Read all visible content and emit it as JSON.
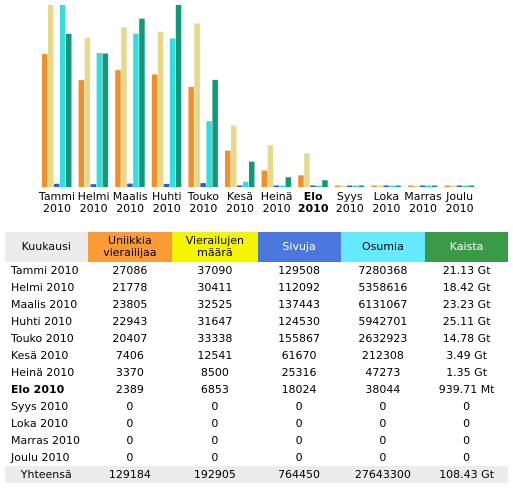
{
  "chart_data": {
    "type": "bar",
    "categories": [
      "Tammi 2010",
      "Helmi 2010",
      "Maalis 2010",
      "Huhti 2010",
      "Touko 2010",
      "Kesä 2010",
      "Heinä 2010",
      "Elo 2010",
      "Syys 2010",
      "Loka 2010",
      "Marras 2010",
      "Joulu 2010"
    ],
    "series": [
      {
        "name": "Uniikkia vierailijaa",
        "color": "#f0902a",
        "values": [
          27086,
          21778,
          23805,
          22943,
          20407,
          7406,
          3370,
          2389,
          0,
          0,
          0,
          0
        ]
      },
      {
        "name": "Vierailujen määrä",
        "color": "#e6d98a",
        "values": [
          37090,
          30411,
          32525,
          31647,
          33338,
          12541,
          8500,
          6853,
          0,
          0,
          0,
          0
        ]
      },
      {
        "name": "Sivuja",
        "color": "#3358d0",
        "values": [
          129508,
          112092,
          137443,
          124530,
          155867,
          61670,
          25316,
          18024,
          0,
          0,
          0,
          0
        ]
      },
      {
        "name": "Osumia",
        "color": "#33dde0",
        "values": [
          7280368,
          5358616,
          6131067,
          5942701,
          2632923,
          212308,
          47273,
          38044,
          0,
          0,
          0,
          0
        ]
      },
      {
        "name": "Kaista",
        "color": "#109a76",
        "values": [
          21.13,
          18.42,
          23.23,
          25.11,
          14.78,
          3.49,
          1.35,
          0.93971,
          0,
          0,
          0,
          0
        ]
      }
    ]
  },
  "table": {
    "header": [
      "Kuukausi",
      "Uniikkia vierailijaa",
      "Vierailujen määrä",
      "Sivuja",
      "Osumia",
      "Kaista"
    ],
    "rows": [
      [
        "Tammi 2010",
        "27086",
        "37090",
        "129508",
        "7280368",
        "21.13 Gt"
      ],
      [
        "Helmi 2010",
        "21778",
        "30411",
        "112092",
        "5358616",
        "18.42 Gt"
      ],
      [
        "Maalis 2010",
        "23805",
        "32525",
        "137443",
        "6131067",
        "23.23 Gt"
      ],
      [
        "Huhti 2010",
        "22943",
        "31647",
        "124530",
        "5942701",
        "25.11 Gt"
      ],
      [
        "Touko 2010",
        "20407",
        "33338",
        "155867",
        "2632923",
        "14.78 Gt"
      ],
      [
        "Kesä 2010",
        "7406",
        "12541",
        "61670",
        "212308",
        "3.49 Gt"
      ],
      [
        "Heinä 2010",
        "3370",
        "8500",
        "25316",
        "47273",
        "1.35 Gt"
      ],
      [
        "Elo 2010",
        "2389",
        "6853",
        "18024",
        "38044",
        "939.71 Mt"
      ],
      [
        "Syys 2010",
        "0",
        "0",
        "0",
        "0",
        "0"
      ],
      [
        "Loka 2010",
        "0",
        "0",
        "0",
        "0",
        "0"
      ],
      [
        "Marras 2010",
        "0",
        "0",
        "0",
        "0",
        "0"
      ],
      [
        "Joulu 2010",
        "0",
        "0",
        "0",
        "0",
        "0"
      ]
    ],
    "total": [
      "Yhteensä",
      "129184",
      "192905",
      "764450",
      "27643300",
      "108.43 Gt"
    ]
  }
}
